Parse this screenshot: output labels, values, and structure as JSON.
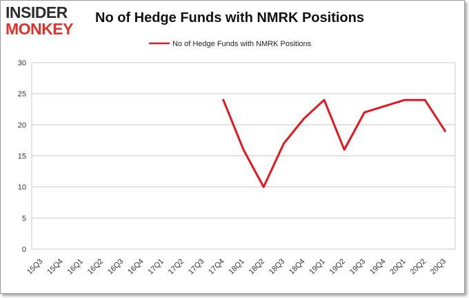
{
  "logo": {
    "line1": "INSIDER",
    "line2": "MONKEY"
  },
  "chart_data": {
    "type": "line",
    "title": "No of Hedge Funds with NMRK Positions",
    "xlabel": "",
    "ylabel": "",
    "ylim": [
      0,
      30
    ],
    "yticks": [
      0,
      5,
      10,
      15,
      20,
      25,
      30
    ],
    "grid": true,
    "legend_position": "top-center",
    "categories": [
      "15Q3",
      "15Q4",
      "16Q1",
      "16Q2",
      "16Q3",
      "16Q4",
      "17Q1",
      "17Q2",
      "17Q3",
      "17Q4",
      "18Q1",
      "18Q2",
      "18Q3",
      "18Q4",
      "19Q1",
      "19Q2",
      "19Q3",
      "19Q4",
      "20Q1",
      "20Q2",
      "20Q3"
    ],
    "series": [
      {
        "name": "No of Hedge Funds with NMRK Positions",
        "color": "#e8141b",
        "values": [
          null,
          null,
          null,
          null,
          null,
          null,
          null,
          null,
          null,
          24,
          16,
          10,
          17,
          21,
          24,
          16,
          22,
          23,
          24,
          24,
          19
        ]
      }
    ]
  }
}
